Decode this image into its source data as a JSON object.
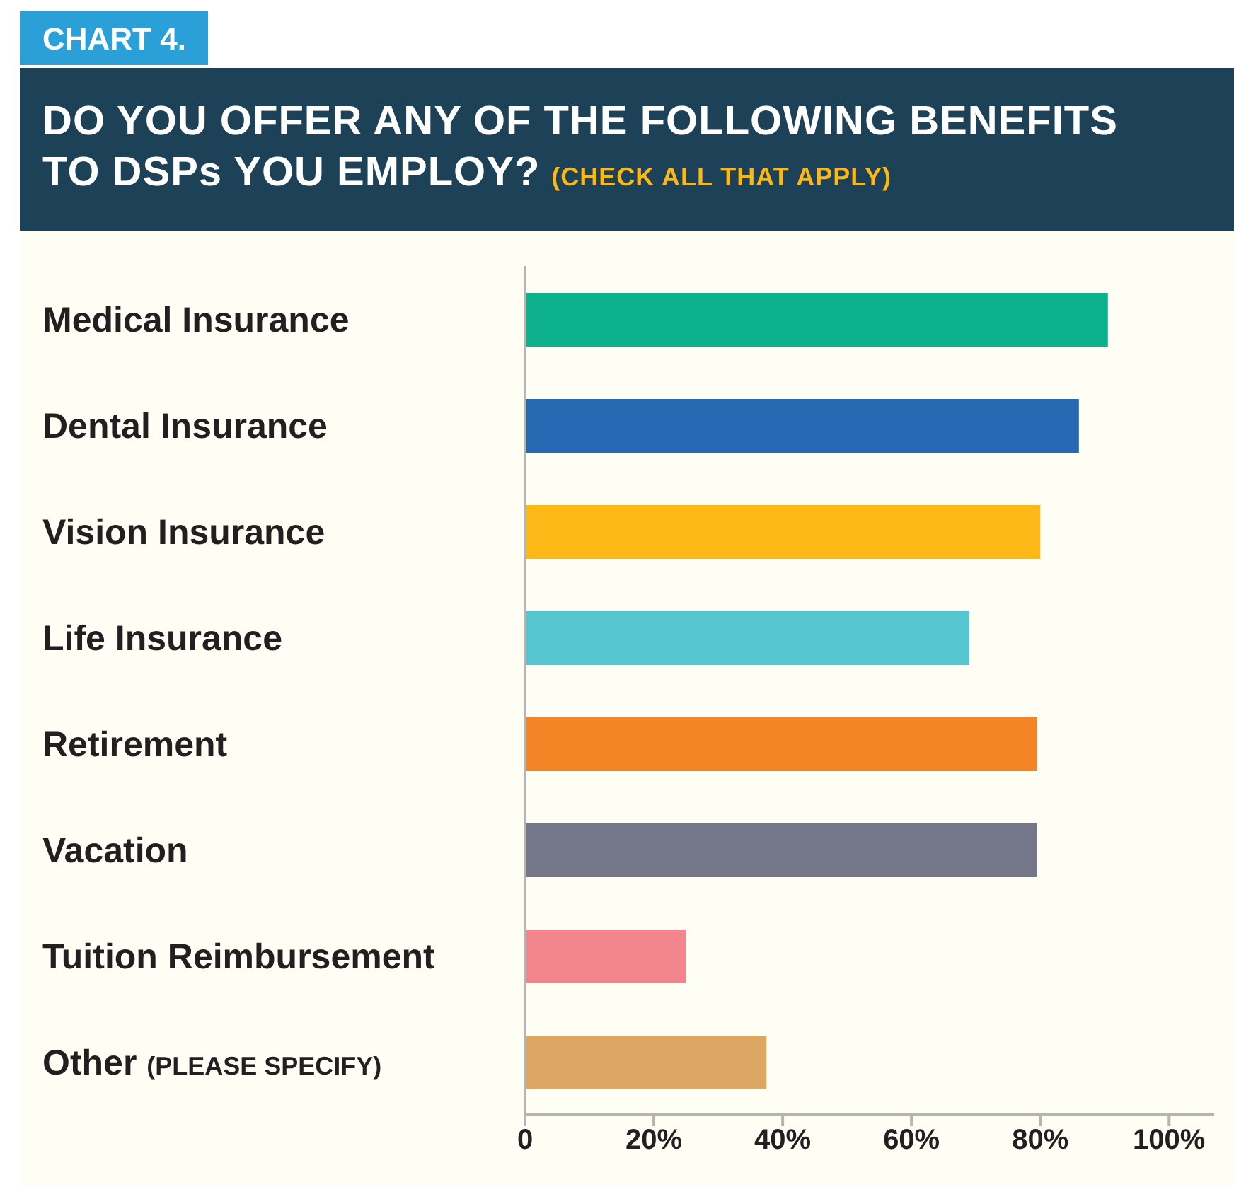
{
  "chart_data": {
    "type": "bar",
    "orientation": "horizontal",
    "title": "DO YOU OFFER ANY OF THE FOLLOWING BENEFITS TO DSPs YOU EMPLOY?",
    "subtitle": "(CHECK ALL THAT APPLY)",
    "annotations": [
      "CHART 4."
    ],
    "categories": [
      "Medical Insurance",
      "Dental Insurance",
      "Vision Insurance",
      "Life Insurance",
      "Retirement",
      "Vacation",
      "Tuition Reimbursement",
      "Other (PLEASE SPECIFY)"
    ],
    "values": [
      90.5,
      86,
      80,
      69,
      79.5,
      79.5,
      25,
      37.5
    ],
    "colors": [
      "#0db28c",
      "#2768b2",
      "#fbb817",
      "#55c5cf",
      "#f48426",
      "#747689",
      "#f3868c",
      "#dca762"
    ],
    "xlim": [
      0,
      107
    ],
    "xticks": [
      0,
      {
        "value": 20,
        "label": "20%"
      },
      {
        "value": 40,
        "label": "40%"
      },
      {
        "value": 60,
        "label": "60%"
      },
      {
        "value": 80,
        "label": "80%"
      },
      {
        "value": 100,
        "label": "100%"
      }
    ],
    "legend": false
  }
}
